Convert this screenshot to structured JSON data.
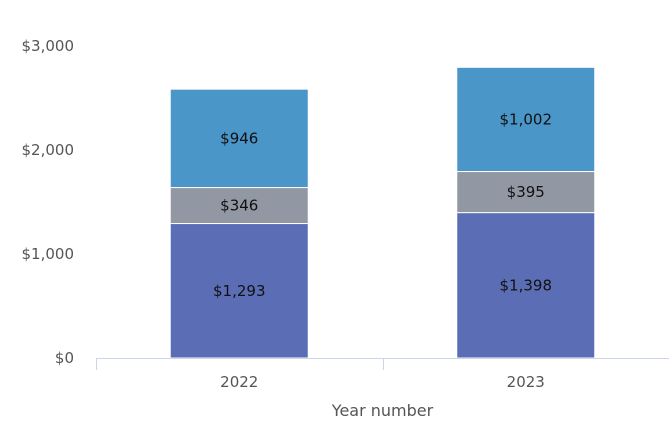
{
  "chart_data": {
    "type": "bar",
    "stacked": true,
    "categories": [
      "2022",
      "2023"
    ],
    "xlabel": "Year number",
    "ylabel": "",
    "ylim": [
      0,
      3000
    ],
    "yticks": [
      0,
      1000,
      2000,
      3000
    ],
    "ytick_labels": [
      "$0",
      "$1,000",
      "$2,000",
      "$3,000"
    ],
    "grid": false,
    "legend": "none",
    "series": [
      {
        "values": [
          1293,
          1398
        ],
        "labels": [
          "$1,293",
          "$1,398"
        ],
        "color": "#5b6eb5"
      },
      {
        "values": [
          346,
          395
        ],
        "labels": [
          "$346",
          "$395"
        ],
        "color": "#9298a3"
      },
      {
        "values": [
          946,
          1002
        ],
        "labels": [
          "$946",
          "$1,002"
        ],
        "color": "#4a96c8"
      }
    ]
  }
}
